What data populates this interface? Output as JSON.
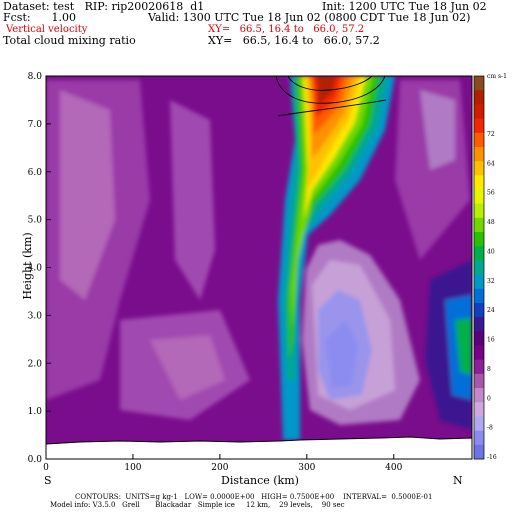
{
  "header": {
    "dataset_line": "Dataset: test   RIP: rip20020618  d1",
    "init_line": "Init: 1200 UTC Tue 18 Jun 02",
    "fcst_line": "Fcst:      1.00",
    "valid_line": "Valid: 1300 UTC Tue 18 Jun 02 (0800 CDT Tue 18 Jun 02)",
    "field1_label": "Vertical velocity",
    "field1_xy": "XY=   66.5, 16.4 to   66.0, 57.2",
    "field2_label": "Total cloud mixing ratio",
    "field2_xy": "XY=   66.5, 16.4 to   66.0, 57.2"
  },
  "footer": {
    "contours_line": "CONTOURS:  UNITS=g kg-1   LOW= 0.0000E+00   HIGH= 0.7500E+00    INTERVAL=  0.5000E-01",
    "model_line": "Model info: V3.5.0   Grell       Blackadar   Simple ice     12 km,    29 levels,    90 sec"
  },
  "chart_data": {
    "type": "heatmap",
    "xlabel": "Distance (km)",
    "ylabel": "Height (km)",
    "xlim": [
      0,
      490
    ],
    "ylim": [
      0,
      8
    ],
    "x_ticks": [
      0,
      100,
      200,
      300,
      400
    ],
    "y_ticks": [
      "0.0",
      "1.0",
      "2.0",
      "3.0",
      "4.0",
      "5.0",
      "6.0",
      "7.0",
      "8.0"
    ],
    "left_end_label": "S",
    "right_end_label": "N",
    "colorbar": {
      "units": "cm s-1",
      "tick_labels": [
        "72",
        "64",
        "56",
        "48",
        "40",
        "32",
        "24",
        "16",
        "8",
        "0",
        "-8",
        "-16"
      ],
      "colors": [
        "#8a4a1e",
        "#b02000",
        "#d21b00",
        "#f02800",
        "#ff5a00",
        "#ff9000",
        "#ffc000",
        "#ffea00",
        "#e8f500",
        "#b8ee00",
        "#70d800",
        "#28c000",
        "#00b048",
        "#00a890",
        "#0098c8",
        "#0070d8",
        "#1040c0",
        "#3a1890",
        "#5a007a",
        "#760088",
        "#8c2098",
        "#a858a8",
        "#c288c8",
        "#d0a8e0",
        "#b0a8f0",
        "#8c8cf0",
        "#6c74e8"
      ]
    },
    "series": [
      {
        "name": "Vertical velocity",
        "updraft_core_max": 72,
        "updraft_core_x": 325,
        "updraft_core_height": 7.6,
        "downdraft_min": -16,
        "downdraft_x": 330,
        "downdraft_height": 2.0
      },
      {
        "name": "Total cloud mixing ratio",
        "low": 0.0,
        "high": 0.75,
        "interval": 0.05
      }
    ],
    "terrain_height_km": 0.4
  }
}
